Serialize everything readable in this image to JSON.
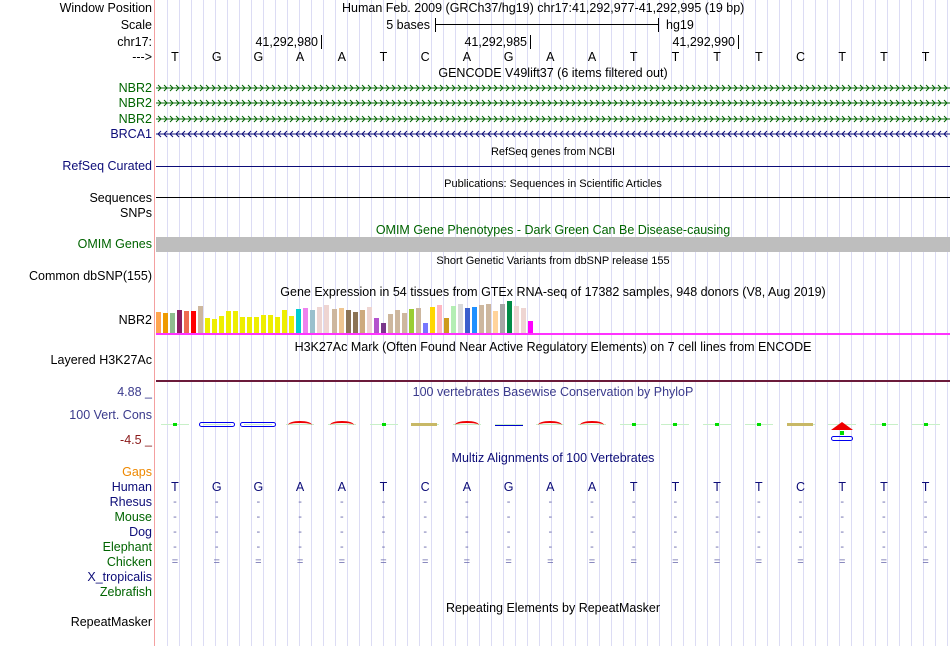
{
  "header": {
    "window_position_label": "Window Position",
    "window_position": "Human Feb. 2009 (GRCh37/hg19)   chr17:41,292,977-41,292,995 (19 bp)",
    "scale_label": "Scale",
    "scale_text": "5 bases",
    "assembly": "hg19",
    "chrom_label": "chr17:",
    "ticks": [
      "41,292,980",
      "41,292,985",
      "41,292,990"
    ],
    "strand_label": "--->"
  },
  "bases": [
    "T",
    "G",
    "G",
    "A",
    "A",
    "T",
    "C",
    "A",
    "G",
    "A",
    "A",
    "T",
    "T",
    "T",
    "T",
    "C",
    "T",
    "T",
    "T"
  ],
  "gencode": {
    "title": "GENCODE V49lift37 (6 items filtered out)",
    "items": [
      {
        "name": "NBR2",
        "strand": "+",
        "color": "#006400"
      },
      {
        "name": "NBR2",
        "strand": "+",
        "color": "#006400"
      },
      {
        "name": "NBR2",
        "strand": "+",
        "color": "#006400"
      },
      {
        "name": "BRCA1",
        "strand": "-",
        "color": "#0c0c78"
      }
    ]
  },
  "refseq": {
    "title": "RefSeq genes from NCBI",
    "label": "RefSeq Curated",
    "color": "#0c0c78"
  },
  "publications": {
    "title": "Publications: Sequences in Scientific Articles",
    "label": "Sequences"
  },
  "snps": {
    "label": "SNPs"
  },
  "omim": {
    "title": "OMIM Gene Phenotypes - Dark Green Can Be Disease-causing",
    "label": "OMIM Genes",
    "color": "#006400"
  },
  "dbsnp": {
    "title": "Short Genetic Variants from dbSNP release 155",
    "label": "Common dbSNP(155)"
  },
  "gtex": {
    "title": "Gene Expression in 54 tissues from GTEx RNA-seq of 17382 samples, 948 donors (V8, Aug 2019)",
    "label": "NBR2",
    "relative_values": [
      66,
      63,
      63,
      72,
      69,
      69,
      84,
      48,
      45,
      54,
      69,
      69,
      51,
      51,
      51,
      57,
      57,
      51,
      72,
      54,
      75,
      78,
      72,
      81,
      87,
      75,
      78,
      72,
      66,
      72,
      81,
      48,
      30,
      60,
      72,
      63,
      75,
      78,
      30,
      81,
      87,
      48,
      84,
      90,
      78,
      81,
      87,
      90,
      69,
      90,
      99,
      84,
      78,
      39
    ],
    "colors": [
      "#FFA54F",
      "#EE9A00",
      "#8FBC8F",
      "#8B1C62",
      "#EE6A50",
      "#FF0000",
      "#CDB79E",
      "#EEEE00",
      "#EEEE00",
      "#EEEE00",
      "#EEEE00",
      "#EEEE00",
      "#EEEE00",
      "#EEEE00",
      "#EEEE00",
      "#EEEE00",
      "#EEEE00",
      "#EEEE00",
      "#EEEE00",
      "#EEEE00",
      "#00CED1",
      "#EE82EE",
      "#9AC0CD",
      "#EED5D2",
      "#EED5D2",
      "#CDB79E",
      "#EEC591",
      "#8B7355",
      "#8B7355",
      "#CDAA7D",
      "#EED5D2",
      "#B452CD",
      "#7A378B",
      "#CDB79E",
      "#CDB79E",
      "#CDB79E",
      "#9ACD32",
      "#CDB79E",
      "#7777FF",
      "#FFD700",
      "#FFB6C1",
      "#CD9B1D",
      "#B4EEB4",
      "#D9D9D9",
      "#3A5FCD",
      "#1E90FF",
      "#CDB79E",
      "#CDB79E",
      "#FFD39B",
      "#A6A6A6",
      "#008B45",
      "#EED5D2",
      "#EED5D2",
      "#FF00FF"
    ]
  },
  "h3k27ac": {
    "title": "H3K27Ac Mark (Often Found Near Active Regulatory Elements) on 7 cell lines from ENCODE",
    "label": "Layered H3K27Ac"
  },
  "phylop": {
    "title": "100 vertebrates Basewise Conservation by PhyloP",
    "label": "100 Vert. Cons",
    "max": "4.88 _",
    "min": "-4.5 _",
    "glyphs": [
      "dot",
      "ellipse",
      "ellipse",
      "caret",
      "caret",
      "dot",
      "olive",
      "caret",
      "line",
      "caret",
      "caret",
      "dot",
      "dot",
      "dot",
      "dot",
      "olive",
      "A",
      "dot",
      "dot"
    ]
  },
  "multiz": {
    "title": "Multiz Alignments of 100 Vertebrates",
    "gaps_label": "Gaps",
    "species": [
      {
        "name": "Human",
        "color": "#0c0c78",
        "row": "bases"
      },
      {
        "name": "Rhesus",
        "color": "#0c0c78",
        "row": "-"
      },
      {
        "name": "Mouse",
        "color": "#006400",
        "row": "-"
      },
      {
        "name": "Dog",
        "color": "#0c0c78",
        "row": "-"
      },
      {
        "name": "Elephant",
        "color": "#006400",
        "row": "-"
      },
      {
        "name": "Chicken",
        "color": "#006400",
        "row": "="
      },
      {
        "name": "X_tropicalis",
        "color": "#0c0c78",
        "row": ""
      },
      {
        "name": "Zebrafish",
        "color": "#006400",
        "row": ""
      }
    ]
  },
  "repeatmasker": {
    "title": "Repeating Elements by RepeatMasker",
    "label": "RepeatMasker"
  }
}
